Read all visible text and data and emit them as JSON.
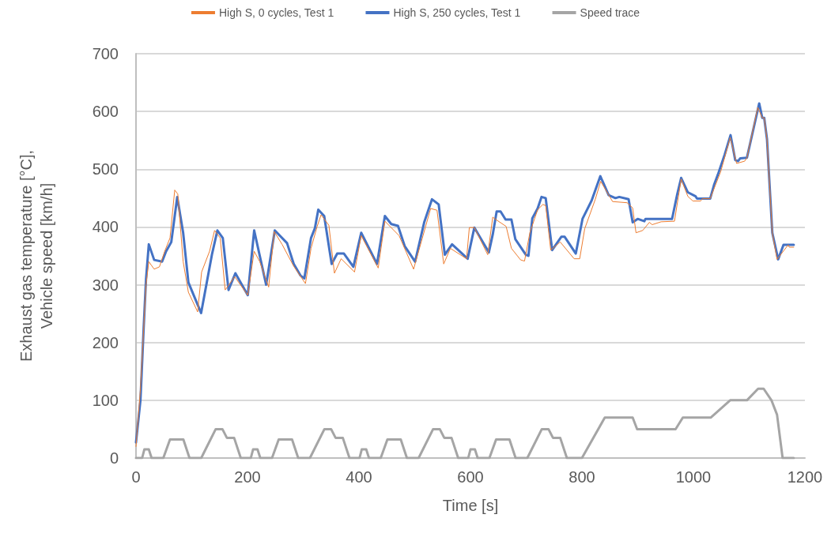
{
  "chart_data": {
    "type": "line",
    "xlabel": "Time [s]",
    "ylabel": "Exhaust gas temperature [°C],\nVehicle speed [km/h]",
    "xlim": [
      0,
      1200
    ],
    "xticks": [
      0,
      200,
      400,
      600,
      800,
      1000,
      1200
    ],
    "ylim": [
      0,
      700
    ],
    "yticks": [
      0,
      100,
      200,
      300,
      400,
      500,
      600,
      700
    ],
    "grid": "y",
    "legend": "top",
    "marker": "none",
    "line_style": "solid",
    "series": [
      {
        "name": "High S, 0 cycles, Test 1",
        "color": "#ed7d31",
        "x": [
          0,
          8,
          18,
          23,
          32.6,
          42,
          51.5,
          61,
          69.5,
          75,
          84.6,
          94,
          110.6,
          117.7,
          132,
          141,
          151,
          160,
          177,
          200.5,
          212,
          222,
          238,
          248,
          262,
          283,
          304,
          314,
          325,
          332,
          346,
          356,
          368,
          392,
          404,
          434.5,
          446.5,
          472,
          498,
          528.6,
          540,
          552,
          564,
          593,
          598,
          607,
          631,
          640,
          647,
          664,
          673.5,
          690,
          697,
          706.6,
          720.5,
          730,
          735,
          744,
          761,
          786,
          796,
          805,
          824,
          833.6,
          855,
          881,
          891,
          897,
          909,
          921,
          926,
          942,
          966,
          978,
          990,
          999,
          1013,
          1016,
          1030,
          1049,
          1066,
          1077.5,
          1092,
          1096,
          1115.5,
          1123.5,
          1127,
          1132,
          1141.5,
          1150,
          1170,
          1172,
          1180
        ],
        "values": [
          20,
          120,
          300,
          340,
          327,
          331,
          358,
          381,
          464,
          457,
          340,
          287,
          253,
          322,
          358,
          394,
          381,
          291,
          314,
          282,
          358,
          340,
          296,
          392,
          370,
          332,
          302,
          363,
          401,
          421,
          403,
          320,
          345,
          322,
          385,
          329,
          410,
          385,
          327,
          432,
          429,
          336,
          363,
          345,
          399,
          399,
          352,
          417,
          412,
          401,
          363,
          343,
          341,
          390,
          430,
          439,
          437,
          360,
          374,
          345,
          345,
          397,
          448,
          479,
          444,
          442,
          433,
          390,
          394,
          408,
          404,
          409,
          410,
          483,
          453,
          445,
          445,
          449,
          449,
          496,
          555,
          510,
          514,
          520,
          607,
          589,
          589,
          552,
          390,
          344,
          369,
          365,
          365
        ]
      },
      {
        "name": "High S, 250 cycles, Test 1",
        "color": "#4472c4",
        "x": [
          0,
          8,
          13.7,
          18,
          23,
          32.6,
          46.8,
          54,
          63.3,
          74,
          84.6,
          94,
          116.8,
          127,
          136.6,
          146,
          155.7,
          166,
          178.3,
          200.5,
          212,
          233.5,
          249,
          271,
          283,
          295,
          302,
          314,
          321,
          327,
          337.6,
          351,
          361,
          373,
          390,
          404,
          432.3,
          446.5,
          458,
          470,
          482,
          500.7,
          517,
          531,
          543,
          554,
          567,
          595,
          607,
          633,
          640,
          647,
          654,
          663,
          673.5,
          680.5,
          699.4,
          704,
          711,
          720.5,
          727.5,
          735,
          746.6,
          763,
          769,
          789,
          801,
          817.5,
          833,
          848,
          860,
          867,
          883.7,
          891,
          900,
          912,
          914,
          961.7,
          971,
          978,
          990,
          1004,
          1006.5,
          1030,
          1037,
          1044,
          1056,
          1066.6,
          1075,
          1080,
          1084,
          1096,
          1118,
          1123.5,
          1127,
          1132,
          1141.5,
          1152,
          1161.6,
          1180
        ],
        "values": [
          27,
          100,
          224,
          310,
          370,
          343,
          340,
          358,
          374,
          452,
          390,
          304,
          251,
          304,
          354,
          394,
          381,
          291,
          320,
          282,
          394,
          300,
          394,
          372,
          336,
          316,
          311,
          381,
          398,
          430,
          419,
          336,
          354,
          354,
          331,
          390,
          336,
          419,
          405,
          402,
          367,
          340,
          408,
          448,
          439,
          352,
          370,
          345,
          399,
          356,
          387,
          427,
          427,
          413,
          413,
          379,
          352,
          350,
          415,
          432,
          452,
          450,
          360,
          383,
          383,
          354,
          414,
          446,
          488,
          455,
          450,
          452,
          448,
          408,
          414,
          410,
          414,
          414,
          457,
          485,
          460,
          453,
          449,
          449,
          473,
          491,
          525,
          559,
          516,
          514,
          519,
          520,
          614,
          589,
          589,
          552,
          390,
          344,
          369,
          369
        ]
      },
      {
        "name": "Speed trace",
        "color": "#a5a5a5",
        "x": [
          0,
          11,
          15,
          23,
          28,
          49,
          61,
          85,
          96,
          117,
          143,
          155,
          163,
          176,
          188,
          195,
          206,
          210,
          218,
          223,
          244,
          256,
          280,
          291,
          312,
          338,
          350,
          358,
          371,
          383,
          390,
          401,
          405,
          413,
          418,
          439,
          451,
          475,
          486,
          507,
          533,
          545,
          553,
          566,
          578,
          585,
          596,
          600,
          608,
          613,
          634,
          646,
          670,
          681,
          702,
          728,
          740,
          748,
          761,
          773,
          780,
          800,
          841,
          891,
          899,
          968,
          981,
          1031,
          1066,
          1096,
          1116,
          1126,
          1140,
          1150,
          1160,
          1180
        ],
        "values": [
          0,
          0,
          15,
          15,
          0,
          0,
          32,
          32,
          0,
          0,
          50,
          50,
          35,
          35,
          0,
          0,
          0,
          15,
          15,
          0,
          0,
          32,
          32,
          0,
          0,
          50,
          50,
          35,
          35,
          0,
          0,
          0,
          15,
          15,
          0,
          0,
          32,
          32,
          0,
          0,
          50,
          50,
          35,
          35,
          0,
          0,
          0,
          15,
          15,
          0,
          0,
          32,
          32,
          0,
          0,
          50,
          50,
          35,
          35,
          0,
          0,
          0,
          70,
          70,
          50,
          50,
          70,
          70,
          100,
          100,
          120,
          120,
          100,
          75,
          0,
          0
        ]
      }
    ]
  }
}
